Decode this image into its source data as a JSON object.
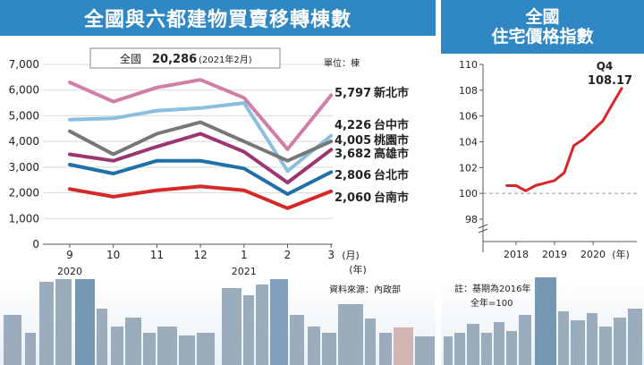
{
  "left_panel": {
    "title": "全國與六都建物買賣移轉棟數",
    "callout_label": "全國",
    "callout_value": "20,286",
    "callout_note": "(2021年2月)",
    "unit": "單位：棟",
    "source": "資料來源：內政部",
    "x_year_labels": [
      "2020",
      "2021"
    ],
    "x_unit": "(月)",
    "x_unit2": "(年)"
  },
  "right_panel": {
    "title_line1": "全國",
    "title_line2": "住宅價格指數",
    "annotation_q": "Q4",
    "annotation_v": "108.17",
    "note_line1": "註：基期為2016年",
    "note_line2": "全年=100",
    "x_unit": "(年)"
  },
  "chart_data": [
    {
      "type": "line",
      "title": "全國與六都建物買賣移轉棟數",
      "ylabel": "單位：棟",
      "xlabel": "(月)",
      "categories": [
        "9",
        "10",
        "11",
        "12",
        "1",
        "2",
        "3"
      ],
      "y_ticks": [
        "0",
        "1,000",
        "2,000",
        "3,000",
        "4,000",
        "5,000",
        "6,000",
        "7,000"
      ],
      "ylim": [
        0,
        7000
      ],
      "grid": true,
      "series": [
        {
          "name": "新北市",
          "label": "5,797",
          "color": "#d07ea6",
          "values": [
            6300,
            5550,
            6100,
            6400,
            5700,
            3700,
            5797
          ]
        },
        {
          "name": "台中市",
          "label": "4,226",
          "color": "#8cbfdd",
          "values": [
            4850,
            4900,
            5200,
            5300,
            5500,
            2850,
            4226
          ]
        },
        {
          "name": "桃園市",
          "label": "4,005",
          "color": "#777777",
          "values": [
            4400,
            3500,
            4300,
            4750,
            4000,
            3250,
            4005
          ]
        },
        {
          "name": "高雄市",
          "label": "3,682",
          "color": "#9c3670",
          "values": [
            3500,
            3250,
            3800,
            4300,
            3600,
            2400,
            3682
          ]
        },
        {
          "name": "台北市",
          "label": "2,806",
          "color": "#1f6fa8",
          "values": [
            3100,
            2750,
            3250,
            3250,
            2950,
            1950,
            2806
          ]
        },
        {
          "name": "台南市",
          "label": "2,060",
          "color": "#d62829",
          "values": [
            2150,
            1850,
            2100,
            2250,
            2100,
            1400,
            2060
          ]
        }
      ]
    },
    {
      "type": "line",
      "title": "全國住宅價格指數",
      "xlabel": "(年)",
      "x_ticks": [
        "2018",
        "2019",
        "2020"
      ],
      "y_ticks": [
        "98",
        "100",
        "102",
        "104",
        "106",
        "108",
        "110"
      ],
      "ylim": [
        97,
        110
      ],
      "baseline": 100,
      "series": [
        {
          "color": "#d62829",
          "x": [
            2017.75,
            2018.0,
            2018.25,
            2018.5,
            2018.75,
            2019.0,
            2019.25,
            2019.5,
            2019.75,
            2020.0,
            2020.25,
            2020.5,
            2020.75
          ],
          "values": [
            100.6,
            100.6,
            100.2,
            100.6,
            100.8,
            101.0,
            101.6,
            103.7,
            104.2,
            104.9,
            105.6,
            106.9,
            108.17
          ]
        }
      ]
    }
  ]
}
